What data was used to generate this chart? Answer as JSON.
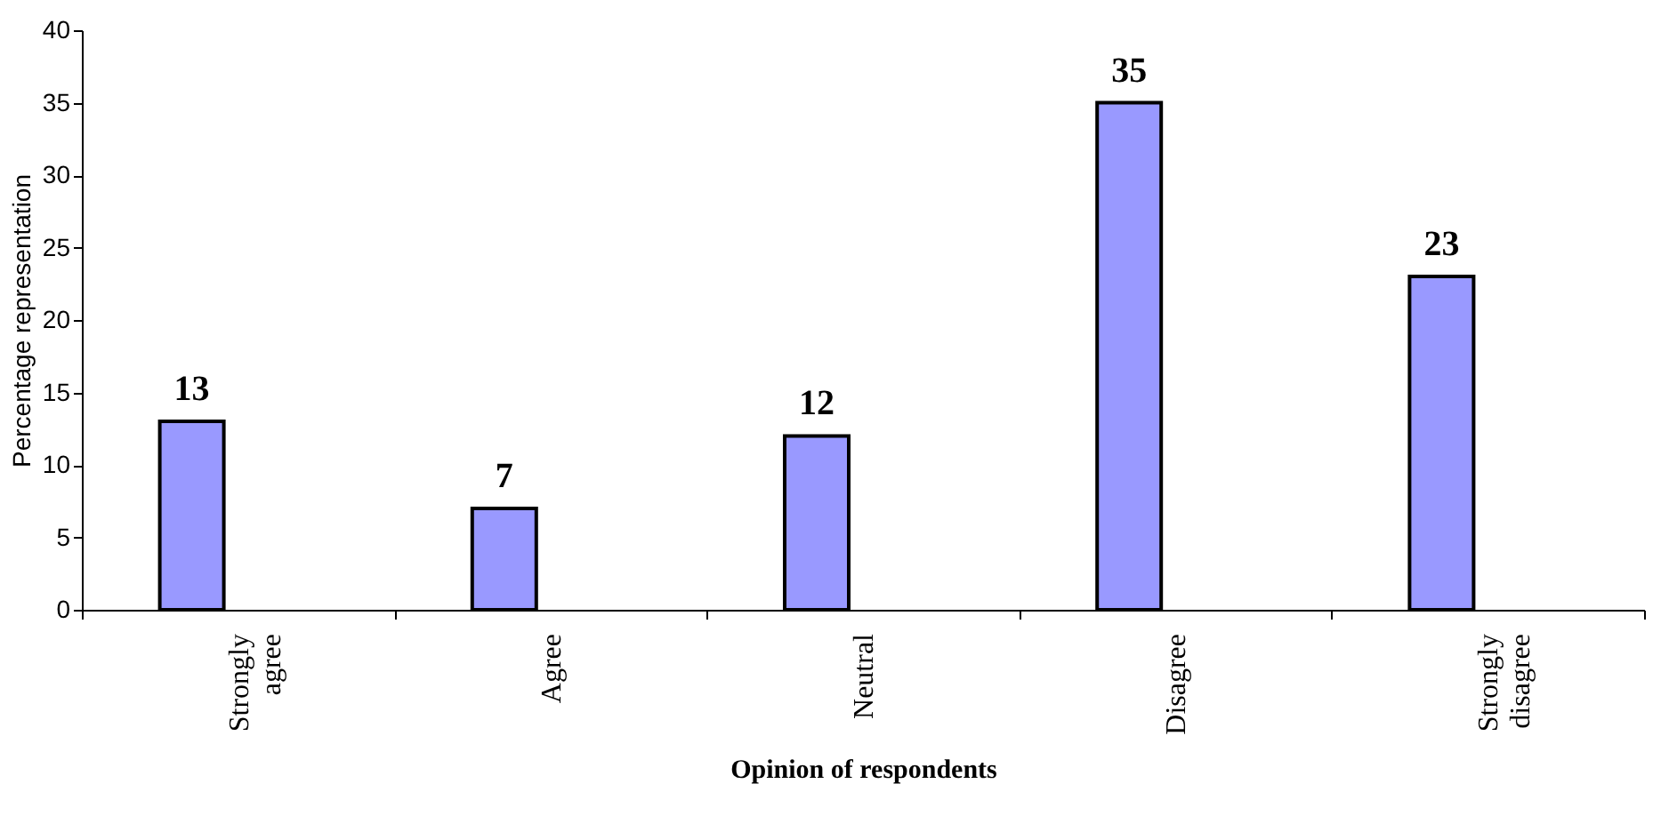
{
  "chart_data": {
    "type": "bar",
    "xlabel": "Opinion of respondents",
    "ylabel": "Percentage representation",
    "categories": [
      "Strongly agree",
      "Agree",
      "Neutral",
      "Disagree",
      "Strongly disagree"
    ],
    "values": [
      13,
      7,
      12,
      35,
      23
    ],
    "color": "#9999ff",
    "ylim": [
      0,
      40
    ],
    "yticks": [
      0,
      5,
      10,
      15,
      20,
      25,
      30,
      35,
      40
    ],
    "grid": false,
    "data_labels": true
  }
}
